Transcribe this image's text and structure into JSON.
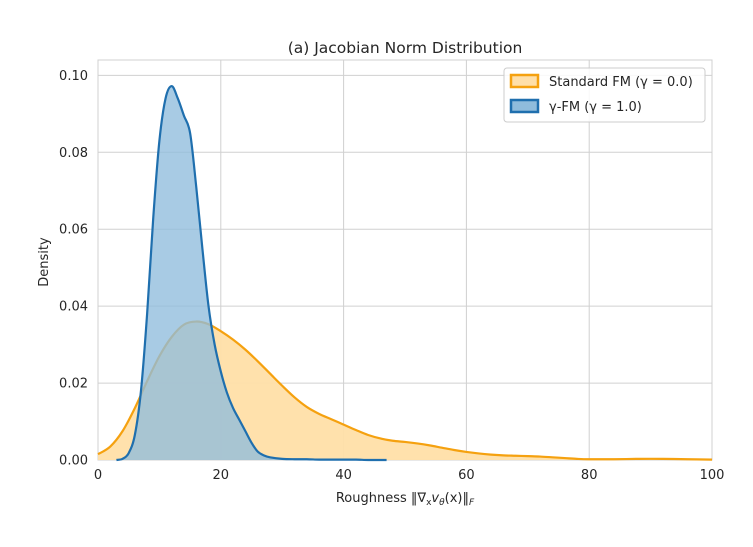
{
  "chart_data": {
    "type": "area",
    "title": "(a) Jacobian Norm Distribution",
    "xlabel": "Roughness ‖∇ₓvθ(x)‖F",
    "xlabel_parts": {
      "prefix": "Roughness ",
      "norm_open": "‖∇",
      "sub_x": "x",
      "v": "v",
      "sub_theta": "θ",
      "arg": "(x)",
      "norm_close": "‖",
      "sub_F": "F"
    },
    "ylabel": "Density",
    "xlim": [
      0,
      100
    ],
    "ylim": [
      0,
      0.104
    ],
    "xticks": [
      0,
      20,
      40,
      60,
      80,
      100
    ],
    "xtick_labels": [
      "0",
      "20",
      "40",
      "60",
      "80",
      "100"
    ],
    "yticks": [
      0.0,
      0.02,
      0.04,
      0.06,
      0.08,
      0.1
    ],
    "ytick_labels": [
      "0.00",
      "0.02",
      "0.04",
      "0.06",
      "0.08",
      "0.10"
    ],
    "grid": true,
    "legend_position": "top-right",
    "series": [
      {
        "name": "Standard FM (γ = 0.0)",
        "legend_label": "Standard FM (γ = 0.0)",
        "color": "#f5a10f",
        "fill_color": "#ffdfa8",
        "x": [
          0,
          2,
          4,
          6,
          8,
          10,
          12,
          14,
          16,
          18,
          20,
          22,
          24,
          26,
          28,
          30,
          32,
          34,
          36,
          38,
          40,
          42,
          44,
          46,
          48,
          50,
          52,
          54,
          56,
          58,
          60,
          62,
          64,
          66,
          68,
          70,
          72,
          74,
          76,
          78,
          80,
          84,
          88,
          92,
          96,
          100
        ],
        "y": [
          0.0015,
          0.0035,
          0.0075,
          0.0135,
          0.0205,
          0.027,
          0.032,
          0.0352,
          0.036,
          0.0353,
          0.0335,
          0.0313,
          0.0287,
          0.0257,
          0.0225,
          0.0193,
          0.0163,
          0.0138,
          0.012,
          0.0106,
          0.0092,
          0.0078,
          0.0065,
          0.0056,
          0.005,
          0.0047,
          0.0043,
          0.0038,
          0.0032,
          0.0026,
          0.0021,
          0.0017,
          0.0014,
          0.0012,
          0.0011,
          0.001,
          0.0009,
          0.0007,
          0.0005,
          0.0003,
          0.0002,
          0.0002,
          0.0003,
          0.0003,
          0.0002,
          0.0001
        ]
      },
      {
        "name": "γ-FM (γ = 1.0)",
        "legend_label": "γ-FM (γ = 1.0)",
        "color": "#1f6fae",
        "fill_color": "#8fbcdc",
        "x": [
          3,
          4,
          5,
          6,
          7,
          8,
          9,
          10,
          11,
          12,
          13,
          14,
          15,
          16,
          17,
          18,
          19,
          20,
          21,
          22,
          23,
          24,
          25,
          26,
          27,
          28,
          30,
          32,
          34,
          36,
          38,
          40,
          42,
          44,
          46,
          47
        ],
        "y": [
          0.0,
          0.0003,
          0.0018,
          0.0065,
          0.018,
          0.038,
          0.063,
          0.083,
          0.094,
          0.0972,
          0.094,
          0.0895,
          0.085,
          0.071,
          0.055,
          0.04,
          0.03,
          0.023,
          0.0175,
          0.0135,
          0.0105,
          0.0075,
          0.0045,
          0.0022,
          0.0012,
          0.0007,
          0.0003,
          0.0002,
          0.0002,
          0.0001,
          0.0001,
          0.0001,
          0.0001,
          0.0,
          0.0,
          0.0
        ]
      }
    ]
  }
}
